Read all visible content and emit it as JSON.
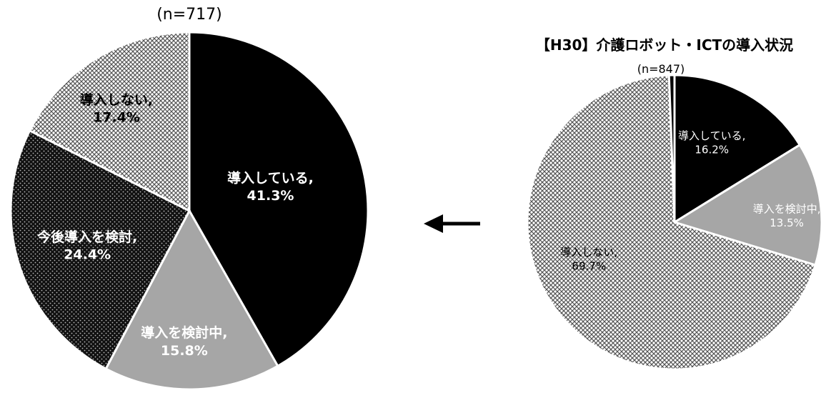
{
  "chart_data": [
    {
      "type": "pie",
      "title": "",
      "subtitle": "(n=717)",
      "slices": [
        {
          "label": "導入している,",
          "value": 41.3,
          "value_text": "41.3%",
          "fill": "solid",
          "color": "#000000",
          "text_color": "#ffffff"
        },
        {
          "label": "導入を検討中,",
          "value": 15.8,
          "value_text": "15.8%",
          "fill": "solid",
          "color": "#a6a6a6",
          "text_color": "#ffffff"
        },
        {
          "label": "今後導入を検討,",
          "value": 24.4,
          "value_text": "24.4%",
          "fill": "dots-dark",
          "color": "#1a1a1a",
          "text_color": "#ffffff"
        },
        {
          "label": "導入しない,",
          "value": 17.4,
          "value_text": "17.4%",
          "fill": "checker",
          "color": "#bfbfbf",
          "text_color": "#000000"
        }
      ]
    },
    {
      "type": "pie",
      "title": "【H30】介護ロボット・ICTの導入状況",
      "subtitle": "(n=847)",
      "slices": [
        {
          "label": "導入している,",
          "value": 16.2,
          "value_text": "16.2%",
          "fill": "solid",
          "color": "#000000",
          "text_color": "#ffffff"
        },
        {
          "label": "導入を検討中,",
          "value": 13.5,
          "value_text": "13.5%",
          "fill": "solid",
          "color": "#a6a6a6",
          "text_color": "#ffffff"
        },
        {
          "label": "導入しない,",
          "value": 69.7,
          "value_text": "69.7%",
          "fill": "checker",
          "color": "#bfbfbf",
          "text_color": "#000000"
        },
        {
          "label": "",
          "value": 0.6,
          "value_text": "",
          "fill": "solid",
          "color": "#000000",
          "text_color": "#000000"
        }
      ]
    }
  ],
  "arrow": {
    "direction": "left",
    "icon": "arrow-left-icon"
  }
}
